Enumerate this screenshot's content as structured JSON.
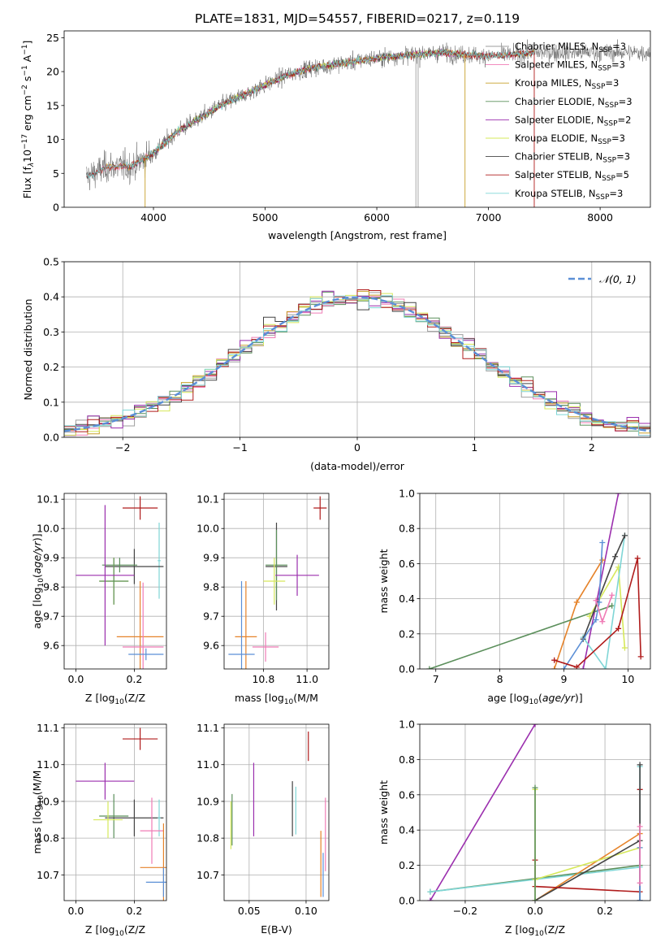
{
  "figure": {
    "title": "PLATE=1831, MJD=54557, FIBERID=0217, z=0.119"
  },
  "colors": {
    "chabrier_miles": "#9e9e9e",
    "salpeter_miles": "#f07cb6",
    "kroupa_miles": "#c8a02a",
    "chabrier_elodie": "#5b8f5b",
    "salpeter_elodie": "#9b2fae",
    "kroupa_elodie": "#d6e85a",
    "chabrier_stelib": "#444444",
    "salpeter_stelib": "#b01c1c",
    "kroupa_stelib": "#7fd6d6",
    "blue": "#5b8fd6",
    "orange": "#e6832a",
    "gaussian": "#5b8fd6"
  },
  "chart_data": [
    {
      "id": "spectrum",
      "type": "line",
      "title": "PLATE=1831, MJD=54557, FIBERID=0217, z=0.119",
      "xlabel": "wavelength [Angstrom, rest frame]",
      "ylabel_parts": [
        "Flux [f",
        "λ",
        "10",
        "−17",
        " erg cm",
        "−2",
        " s",
        "−1",
        " A",
        "−1",
        "]"
      ],
      "xlim": [
        3200,
        8450
      ],
      "ylim": [
        0,
        26
      ],
      "xticks": [
        4000,
        5000,
        6000,
        7000,
        8000
      ],
      "yticks": [
        0,
        5,
        10,
        15,
        20,
        25
      ],
      "grid": false,
      "legend_position": "top-right",
      "continuum_anchor_x": [
        3400,
        3600,
        3800,
        4000,
        4200,
        4400,
        4600,
        4800,
        5000,
        5200,
        5400,
        5600,
        5800,
        6000,
        6200,
        6400,
        6600,
        6800,
        7000,
        7200,
        7400
      ],
      "continuum_anchor_y": [
        4.5,
        6,
        6,
        8,
        11,
        13,
        15,
        16.5,
        18,
        19.5,
        20.5,
        21,
        21.5,
        22,
        22.3,
        22.6,
        22.8,
        22.5,
        22.3,
        22.5,
        22.8
      ],
      "series": [
        {
          "name": "Chabrier MILES, N",
          "sub": "SSP",
          "suffix": "=3",
          "key": "chabrier_miles"
        },
        {
          "name": "Salpeter MILES, N",
          "sub": "SSP",
          "suffix": "=3",
          "key": "salpeter_miles"
        },
        {
          "name": "Kroupa MILES, N",
          "sub": "SSP",
          "suffix": "=3",
          "key": "kroupa_miles"
        },
        {
          "name": "Chabrier ELODIE, N",
          "sub": "SSP",
          "suffix": "=3",
          "key": "chabrier_elodie"
        },
        {
          "name": "Salpeter ELODIE, N",
          "sub": "SSP",
          "suffix": "=2",
          "key": "salpeter_elodie"
        },
        {
          "name": "Kroupa ELODIE, N",
          "sub": "SSP",
          "suffix": "=3",
          "key": "kroupa_elodie"
        },
        {
          "name": "Chabrier STELIB, N",
          "sub": "SSP",
          "suffix": "=3",
          "key": "chabrier_stelib"
        },
        {
          "name": "Salpeter STELIB, N",
          "sub": "SSP",
          "suffix": "=5",
          "key": "salpeter_stelib"
        },
        {
          "name": "Kroupa STELIB, N",
          "sub": "SSP",
          "suffix": "=3",
          "key": "kroupa_stelib"
        }
      ],
      "model_ranges": [
        {
          "key": "chabrier_miles",
          "x0": 3540,
          "x1": 7410
        },
        {
          "key": "salpeter_miles",
          "x0": 3540,
          "x1": 7410
        },
        {
          "key": "kroupa_miles",
          "x0": 3540,
          "x1": 7410
        },
        {
          "key": "chabrier_elodie",
          "x0": 3900,
          "x1": 6800
        },
        {
          "key": "salpeter_elodie",
          "x0": 3900,
          "x1": 6800
        },
        {
          "key": "kroupa_elodie",
          "x0": 3900,
          "x1": 6800
        },
        {
          "key": "chabrier_stelib",
          "x0": 3400,
          "x1": 7410
        },
        {
          "key": "salpeter_stelib",
          "x0": 3400,
          "x1": 7410
        },
        {
          "key": "kroupa_stelib",
          "x0": 3400,
          "x1": 7410
        }
      ],
      "dips": [
        {
          "x": 3925,
          "key": "kroupa_miles"
        },
        {
          "x": 6350,
          "key": "chabrier_miles"
        },
        {
          "x": 6370,
          "key": "chabrier_miles"
        },
        {
          "x": 6790,
          "key": "kroupa_miles"
        },
        {
          "x": 7410,
          "key": "salpeter_stelib"
        }
      ]
    },
    {
      "id": "residuals",
      "type": "step",
      "xlabel": "(data-model)/error",
      "ylabel": "Normed distribution",
      "xlim": [
        -2.5,
        2.5
      ],
      "ylim": [
        0,
        0.5
      ],
      "xticks": [
        -2,
        -1,
        0,
        1,
        2
      ],
      "yticks": [
        0.0,
        0.1,
        0.2,
        0.3,
        0.4,
        0.5
      ],
      "grid": true,
      "legend_position": "top-right",
      "legend_label": "𝒩(0, 1)",
      "bin_width": 0.1,
      "bin_start": -2.5,
      "bins": 50,
      "histogram_keys": [
        "chabrier_miles",
        "salpeter_miles",
        "kroupa_miles",
        "chabrier_elodie",
        "salpeter_elodie",
        "kroupa_elodie",
        "chabrier_stelib",
        "salpeter_stelib",
        "kroupa_stelib"
      ],
      "gaussian": {
        "mean": 0,
        "sigma": 1
      }
    },
    {
      "id": "age_vs_Z",
      "type": "errorbar",
      "xlabel": "Z [log",
      "xlabel_sub": "10",
      "xlabel_rest": "(Z/Z",
      "xlabel_end": ")]",
      "ylabel": "age  [log",
      "ylabel_sub": "10",
      "ylabel_rest": "(age/yr)]",
      "xlim": [
        -0.04,
        0.31
      ],
      "ylim": [
        9.52,
        10.12
      ],
      "xticks": [
        0.0,
        0.2
      ],
      "yticks": [
        9.6,
        9.7,
        9.8,
        9.9,
        10.0,
        10.1
      ],
      "grid": true,
      "points": [
        {
          "key": "salpeter_stelib",
          "x": 0.22,
          "xerr": 0.06,
          "y": 10.07,
          "yerr": 0.04
        },
        {
          "key": "kroupa_stelib",
          "x": 0.285,
          "xerr": 0.005,
          "y": 9.89,
          "yerr": 0.13
        },
        {
          "key": "chabrier_stelib",
          "x": 0.2,
          "xerr": 0.1,
          "y": 9.87,
          "yerr": 0.06
        },
        {
          "key": "chabrier_elodie",
          "x": 0.15,
          "xerr": 0.06,
          "y": 9.875,
          "yerr": 0.025
        },
        {
          "key": "kroupa_elodie",
          "x": 0.13,
          "xerr": 0.05,
          "y": 9.82,
          "yerr": 0.08
        },
        {
          "key": "chabrier_elodie",
          "x": 0.13,
          "xerr": 0.05,
          "y": 9.82,
          "yerr": 0.08
        },
        {
          "key": "salpeter_elodie",
          "x": 0.1,
          "xerr": 0.1,
          "y": 9.84,
          "yerr": 0.24
        },
        {
          "key": "orange",
          "x": 0.22,
          "xerr": 0.08,
          "y": 9.63,
          "yerr": 0.19
        },
        {
          "key": "salpeter_miles",
          "x": 0.23,
          "xerr": 0.07,
          "y": 9.595,
          "yerr": 0.22
        },
        {
          "key": "blue",
          "x": 0.24,
          "xerr": 0.06,
          "y": 9.57,
          "yerr": 0.02
        }
      ]
    },
    {
      "id": "age_vs_mass",
      "type": "errorbar",
      "xlabel": "mass [log",
      "xlabel_sub": "10",
      "xlabel_rest": "(M/M",
      "xlabel_end": ")]",
      "xlim": [
        10.62,
        11.1
      ],
      "ylim": [
        9.52,
        10.12
      ],
      "xticks": [
        10.8,
        11.0
      ],
      "yticks": [
        9.6,
        9.7,
        9.8,
        9.9,
        10.0,
        10.1
      ],
      "grid": true,
      "points": [
        {
          "key": "salpeter_stelib",
          "x": 11.06,
          "xerr": 0.03,
          "y": 10.07,
          "yerr": 0.04
        },
        {
          "key": "chabrier_stelib",
          "x": 10.86,
          "xerr": 0.05,
          "y": 9.87,
          "yerr": 0.15
        },
        {
          "key": "chabrier_elodie",
          "x": 10.86,
          "xerr": 0.05,
          "y": 9.875,
          "yerr": 0.12
        },
        {
          "key": "kroupa_elodie",
          "x": 10.85,
          "xerr": 0.05,
          "y": 9.82,
          "yerr": 0.08
        },
        {
          "key": "salpeter_elodie",
          "x": 10.955,
          "xerr": 0.1,
          "y": 9.84,
          "yerr": 0.07
        },
        {
          "key": "orange",
          "x": 10.72,
          "xerr": 0.05,
          "y": 9.63,
          "yerr": 0.19
        },
        {
          "key": "salpeter_miles",
          "x": 10.81,
          "xerr": 0.06,
          "y": 9.595,
          "yerr": 0.05
        },
        {
          "key": "blue",
          "x": 10.7,
          "xerr": 0.06,
          "y": 9.57,
          "yerr": 0.25
        }
      ]
    },
    {
      "id": "massweight_vs_age",
      "type": "line",
      "xlabel": "age  [log",
      "xlabel_sub": "10",
      "xlabel_rest": "(age/yr)]",
      "ylabel": "mass weight",
      "xlim": [
        6.75,
        10.35
      ],
      "ylim": [
        0,
        1
      ],
      "xticks": [
        7,
        8,
        9,
        10
      ],
      "yticks": [
        0.0,
        0.2,
        0.4,
        0.6,
        0.8,
        1.0
      ],
      "grid": true,
      "series": [
        {
          "key": "salpeter_elodie",
          "x": [
            9.3,
            9.85
          ],
          "y": [
            0.0,
            1.0
          ]
        },
        {
          "key": "orange",
          "x": [
            8.85,
            9.2,
            9.6
          ],
          "y": [
            0.0,
            0.38,
            0.62
          ]
        },
        {
          "key": "chabrier_elodie",
          "x": [
            6.9,
            9.75
          ],
          "y": [
            0.0,
            0.36
          ]
        },
        {
          "key": "kroupa_elodie",
          "x": [
            9.4,
            9.85,
            9.95
          ],
          "y": [
            0.3,
            0.58,
            0.12
          ]
        },
        {
          "key": "kroupa_stelib",
          "x": [
            9.3,
            9.65,
            9.95
          ],
          "y": [
            0.18,
            0.0,
            0.76
          ]
        },
        {
          "key": "chabrier_stelib",
          "x": [
            9.3,
            9.8,
            9.95
          ],
          "y": [
            0.17,
            0.64,
            0.76
          ]
        },
        {
          "key": "blue",
          "x": [
            9.0,
            9.5,
            9.55,
            9.6
          ],
          "y": [
            0.0,
            0.28,
            0.38,
            0.72
          ]
        },
        {
          "key": "salpeter_miles",
          "x": [
            9.5,
            9.6,
            9.75
          ],
          "y": [
            0.39,
            0.27,
            0.42
          ]
        },
        {
          "key": "salpeter_stelib",
          "x": [
            8.85,
            9.2,
            9.85,
            10.15,
            10.2
          ],
          "y": [
            0.05,
            0.01,
            0.23,
            0.63,
            0.07
          ]
        }
      ]
    },
    {
      "id": "mass_vs_Z",
      "type": "errorbar",
      "xlabel": "Z [log",
      "xlabel_sub": "10",
      "xlabel_rest": "(Z/Z",
      "xlabel_end": ")]",
      "ylabel": "mass [log",
      "ylabel_sub": "10",
      "ylabel_rest": "(M/M",
      "ylabel_end": ")]",
      "xlim": [
        -0.04,
        0.31
      ],
      "ylim": [
        10.63,
        11.11
      ],
      "xticks": [
        0.0,
        0.2
      ],
      "yticks": [
        10.7,
        10.8,
        10.9,
        11.0,
        11.1
      ],
      "grid": true,
      "points": [
        {
          "key": "salpeter_stelib",
          "x": 0.22,
          "xerr": 0.06,
          "y": 11.07,
          "yerr": 0.03
        },
        {
          "key": "salpeter_elodie",
          "x": 0.1,
          "xerr": 0.1,
          "y": 10.955,
          "yerr": 0.05
        },
        {
          "key": "chabrier_elodie",
          "x": 0.13,
          "xerr": 0.05,
          "y": 10.86,
          "yerr": 0.06
        },
        {
          "key": "chabrier_stelib",
          "x": 0.2,
          "xerr": 0.1,
          "y": 10.855,
          "yerr": 0.05
        },
        {
          "key": "kroupa_stelib",
          "x": 0.285,
          "xerr": 0.005,
          "y": 10.855,
          "yerr": 0.05
        },
        {
          "key": "kroupa_elodie",
          "x": 0.11,
          "xerr": 0.05,
          "y": 10.85,
          "yerr": 0.05
        },
        {
          "key": "salpeter_miles",
          "x": 0.26,
          "xerr": 0.04,
          "y": 10.82,
          "yerr": 0.09
        },
        {
          "key": "orange",
          "x": 0.3,
          "xerr": 0.08,
          "y": 10.72,
          "yerr": 0.12
        },
        {
          "key": "blue",
          "x": 0.3,
          "xerr": 0.06,
          "y": 10.68,
          "yerr": 0.04
        }
      ]
    },
    {
      "id": "mass_vs_ebv",
      "type": "errorbar",
      "xlabel": "E(B-V)",
      "xlim": [
        0.028,
        0.12
      ],
      "ylim": [
        10.63,
        11.11
      ],
      "xticks": [
        0.05,
        0.1
      ],
      "yticks": [
        10.7,
        10.8,
        10.9,
        11.0,
        11.1
      ],
      "grid": true,
      "points": [
        {
          "key": "salpeter_stelib",
          "x": 0.102,
          "xerr": 0,
          "y": 11.05,
          "yerr": 0.04
        },
        {
          "key": "salpeter_elodie",
          "x": 0.054,
          "xerr": 0,
          "y": 10.905,
          "yerr": 0.1
        },
        {
          "key": "chabrier_stelib",
          "x": 0.088,
          "xerr": 0,
          "y": 10.88,
          "yerr": 0.075
        },
        {
          "key": "kroupa_stelib",
          "x": 0.091,
          "xerr": 0,
          "y": 10.875,
          "yerr": 0.065
        },
        {
          "key": "chabrier_elodie",
          "x": 0.035,
          "xerr": 0,
          "y": 10.85,
          "yerr": 0.07
        },
        {
          "key": "kroupa_elodie",
          "x": 0.034,
          "xerr": 0,
          "y": 10.835,
          "yerr": 0.065
        },
        {
          "key": "salpeter_miles",
          "x": 0.117,
          "xerr": 0,
          "y": 10.81,
          "yerr": 0.1
        },
        {
          "key": "orange",
          "x": 0.113,
          "xerr": 0,
          "y": 10.73,
          "yerr": 0.09
        },
        {
          "key": "blue",
          "x": 0.115,
          "xerr": 0,
          "y": 10.7,
          "yerr": 0.06
        }
      ]
    },
    {
      "id": "massweight_vs_Z",
      "type": "line",
      "xlabel": "Z [log",
      "xlabel_sub": "10",
      "xlabel_rest": "(Z/Z",
      "xlabel_end": ")]",
      "ylabel": "mass weight",
      "xlim": [
        -0.33,
        0.33
      ],
      "ylim": [
        0,
        1
      ],
      "xticks": [
        -0.2,
        0.0,
        0.2
      ],
      "yticks": [
        0.0,
        0.2,
        0.4,
        0.6,
        0.8,
        1.0
      ],
      "grid": true,
      "series": [
        {
          "key": "salpeter_elodie",
          "x": [
            -0.3,
            0.0
          ],
          "y": [
            0.0,
            1.0
          ]
        },
        {
          "key": "chabrier_elodie",
          "x": [
            -0.3,
            0.3
          ],
          "y": [
            0.05,
            0.2
          ]
        },
        {
          "key": "kroupa_stelib",
          "x": [
            -0.3,
            0.3
          ],
          "y": [
            0.05,
            0.19
          ]
        },
        {
          "key": "orange",
          "x": [
            0.0,
            0.3
          ],
          "y": [
            0.0,
            0.38
          ]
        },
        {
          "key": "kroupa_elodie",
          "x": [
            0.0,
            0.3
          ],
          "y": [
            0.12,
            0.3
          ]
        },
        {
          "key": "chabrier_stelib",
          "x": [
            0.0,
            0.3
          ],
          "y": [
            0.0,
            0.34
          ]
        },
        {
          "key": "salpeter_stelib",
          "x": [
            0.0,
            0.0,
            0.3,
            0.3,
            0.3
          ],
          "y": [
            0.23,
            0.08,
            0.05,
            0.63,
            0.0
          ]
        },
        {
          "key": "kroupa_elodie",
          "x": [
            0.0,
            0.0
          ],
          "y": [
            0.0,
            0.63
          ]
        },
        {
          "key": "chabrier_elodie",
          "x": [
            0.0,
            0.0
          ],
          "y": [
            0.0,
            0.64
          ]
        },
        {
          "key": "kroupa_stelib",
          "x": [
            0.3,
            0.3
          ],
          "y": [
            0.0,
            0.76
          ]
        },
        {
          "key": "chabrier_stelib",
          "x": [
            0.3,
            0.3
          ],
          "y": [
            0.0,
            0.77
          ]
        },
        {
          "key": "blue",
          "x": [
            0.3,
            0.3
          ],
          "y": [
            0.0,
            0.3
          ]
        },
        {
          "key": "salpeter_miles",
          "x": [
            0.3,
            0.3
          ],
          "y": [
            0.1,
            0.42
          ]
        }
      ]
    }
  ]
}
